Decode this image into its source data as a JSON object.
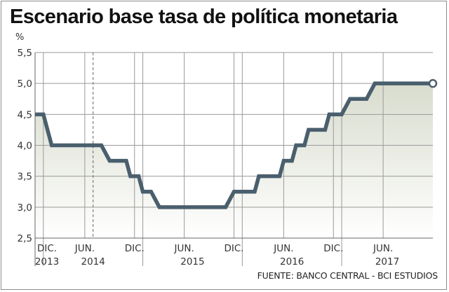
{
  "chart_data": {
    "type": "line",
    "title": "Escenario base tasa de política monetaria",
    "ylabel": "%",
    "ylim": [
      2.5,
      5.5
    ],
    "yticks": [
      "5,5",
      "5,0",
      "4,5",
      "4,0",
      "3,5",
      "3,0",
      "2,5"
    ],
    "ytick_values": [
      5.5,
      5.0,
      4.5,
      4.0,
      3.5,
      3.0,
      2.5
    ],
    "x_month_labels": [
      {
        "label": "DIC.",
        "month": 0
      },
      {
        "label": "JUN.",
        "month": 6
      },
      {
        "label": "DIC.",
        "month": 12
      },
      {
        "label": "JUN.",
        "month": 18
      },
      {
        "label": "DIC.",
        "month": 24
      },
      {
        "label": "JUN.",
        "month": 30
      },
      {
        "label": "DIC.",
        "month": 36
      },
      {
        "label": "JUN.",
        "month": 42
      }
    ],
    "x_year_labels": [
      {
        "label": "2013",
        "start": 0,
        "end": 1
      },
      {
        "label": "2014",
        "start": 1,
        "end": 13
      },
      {
        "label": "2015",
        "start": 13,
        "end": 25
      },
      {
        "label": "2016",
        "start": 25,
        "end": 37
      },
      {
        "label": "2017",
        "start": 37,
        "end": 48
      }
    ],
    "xlim": [
      0,
      48
    ],
    "forecast_start_month": 7,
    "series": [
      {
        "name": "Tasa de política monetaria",
        "color": "#4a5f6d",
        "steps": [
          {
            "from": 0,
            "to": 1,
            "value": 4.5
          },
          {
            "from": 2,
            "to": 8,
            "value": 4.0
          },
          {
            "from": 9,
            "to": 11,
            "value": 3.75
          },
          {
            "from": 11.5,
            "to": 12.5,
            "value": 3.5
          },
          {
            "from": 13,
            "to": 14,
            "value": 3.25
          },
          {
            "from": 15,
            "to": 23,
            "value": 3.0
          },
          {
            "from": 24,
            "to": 26.5,
            "value": 3.25
          },
          {
            "from": 27,
            "to": 29.5,
            "value": 3.5
          },
          {
            "from": 30,
            "to": 31,
            "value": 3.75
          },
          {
            "from": 31.5,
            "to": 32.5,
            "value": 4.0
          },
          {
            "from": 33,
            "to": 35,
            "value": 4.25
          },
          {
            "from": 35.5,
            "to": 37,
            "value": 4.5
          },
          {
            "from": 38,
            "to": 40,
            "value": 4.75
          },
          {
            "from": 41,
            "to": 48,
            "value": 5.0
          }
        ]
      }
    ]
  },
  "source": "FUENTE: BANCO CENTRAL - BCI ESTUDIOS",
  "colors": {
    "line": "#4a5f6d",
    "grid": "#9a9a9a",
    "fill_top": "#d8dccd",
    "fill_bottom": "#ffffff",
    "axis": "#666666"
  }
}
